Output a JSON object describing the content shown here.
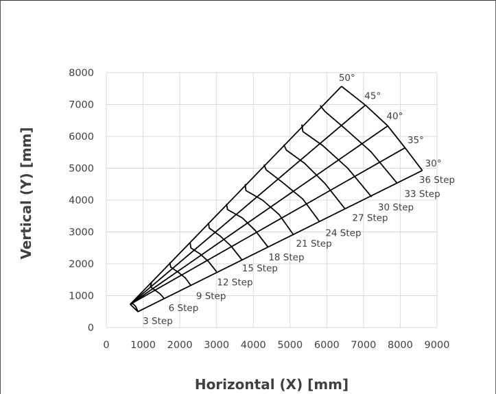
{
  "chart_data": {
    "type": "line",
    "title": "",
    "xlabel": "Horizontal (X) [mm]",
    "ylabel": "Vertical (Y) [mm]",
    "xlim": [
      0,
      9000
    ],
    "ylim": [
      0,
      8000
    ],
    "x_ticks": [
      "0",
      "1000",
      "2000",
      "3000",
      "4000",
      "5000",
      "6000",
      "7000",
      "8000",
      "9000"
    ],
    "y_ticks": [
      "0",
      "1000",
      "2000",
      "3000",
      "4000",
      "5000",
      "6000",
      "7000",
      "8000"
    ],
    "grid": "horizontal and vertical gridlines",
    "line_color": "#000000",
    "grid_color": "#d9d9d9",
    "radial_lines": [
      {
        "label": "30°",
        "points": [
          {
            "x": 650,
            "y": 730
          },
          {
            "x": 860,
            "y": 500
          },
          {
            "x": 8600,
            "y": 4930
          }
        ]
      },
      {
        "label": "35°",
        "points": [
          {
            "x": 650,
            "y": 730
          },
          {
            "x": 8130,
            "y": 5640
          }
        ]
      },
      {
        "label": "40°",
        "points": [
          {
            "x": 650,
            "y": 730
          },
          {
            "x": 7660,
            "y": 6330
          }
        ]
      },
      {
        "label": "45°",
        "points": [
          {
            "x": 650,
            "y": 730
          },
          {
            "x": 7050,
            "y": 6980
          }
        ]
      },
      {
        "label": "50°",
        "points": [
          {
            "x": 650,
            "y": 730
          },
          {
            "x": 6400,
            "y": 7570
          }
        ]
      }
    ],
    "step_arcs": [
      {
        "label": "3 Step",
        "points": [
          {
            "x": 860,
            "y": 500
          },
          {
            "x": 830,
            "y": 580
          },
          {
            "x": 800,
            "y": 660
          },
          {
            "x": 720,
            "y": 750
          },
          {
            "x": 650,
            "y": 730
          }
        ]
      },
      {
        "label": "6 Step",
        "points": [
          {
            "x": 1580,
            "y": 900
          },
          {
            "x": 1470,
            "y": 1050
          },
          {
            "x": 1330,
            "y": 1170
          },
          {
            "x": 1200,
            "y": 1280
          },
          {
            "x": 1230,
            "y": 1400
          }
        ]
      },
      {
        "label": "9 Step",
        "points": [
          {
            "x": 2300,
            "y": 1320
          },
          {
            "x": 2150,
            "y": 1560
          },
          {
            "x": 1950,
            "y": 1740
          },
          {
            "x": 1750,
            "y": 1900
          },
          {
            "x": 1730,
            "y": 2050
          }
        ]
      },
      {
        "label": "12 Step",
        "points": [
          {
            "x": 3000,
            "y": 1750
          },
          {
            "x": 2780,
            "y": 2070
          },
          {
            "x": 2550,
            "y": 2310
          },
          {
            "x": 2300,
            "y": 2500
          },
          {
            "x": 2280,
            "y": 2660
          }
        ]
      },
      {
        "label": "15 Step",
        "points": [
          {
            "x": 3700,
            "y": 2110
          },
          {
            "x": 3400,
            "y": 2550
          },
          {
            "x": 3100,
            "y": 2870
          },
          {
            "x": 2800,
            "y": 3120
          },
          {
            "x": 2780,
            "y": 3290
          }
        ]
      },
      {
        "label": "18 Step",
        "points": [
          {
            "x": 4400,
            "y": 2530
          },
          {
            "x": 4050,
            "y": 3050
          },
          {
            "x": 3700,
            "y": 3440
          },
          {
            "x": 3300,
            "y": 3700
          },
          {
            "x": 3270,
            "y": 3880
          }
        ]
      },
      {
        "label": "21 Step",
        "points": [
          {
            "x": 5100,
            "y": 2900
          },
          {
            "x": 4700,
            "y": 3550
          },
          {
            "x": 4250,
            "y": 4000
          },
          {
            "x": 3800,
            "y": 4300
          },
          {
            "x": 3780,
            "y": 4500
          }
        ]
      },
      {
        "label": "24 Step",
        "points": [
          {
            "x": 5800,
            "y": 3330
          },
          {
            "x": 5350,
            "y": 4030
          },
          {
            "x": 4800,
            "y": 4550
          },
          {
            "x": 4350,
            "y": 4950
          },
          {
            "x": 4290,
            "y": 5110
          }
        ]
      },
      {
        "label": "27 Step",
        "points": [
          {
            "x": 6500,
            "y": 3720
          },
          {
            "x": 5950,
            "y": 4520
          },
          {
            "x": 5400,
            "y": 5150
          },
          {
            "x": 4900,
            "y": 5570
          },
          {
            "x": 4830,
            "y": 5740
          }
        ]
      },
      {
        "label": "30 Step",
        "points": [
          {
            "x": 7220,
            "y": 4100
          },
          {
            "x": 6570,
            "y": 5000
          },
          {
            "x": 5900,
            "y": 5700
          },
          {
            "x": 5350,
            "y": 6150
          },
          {
            "x": 5320,
            "y": 6370
          }
        ]
      },
      {
        "label": "33 Step",
        "points": [
          {
            "x": 7920,
            "y": 4520
          },
          {
            "x": 7200,
            "y": 5520
          },
          {
            "x": 6500,
            "y": 6240
          },
          {
            "x": 5950,
            "y": 6780
          },
          {
            "x": 5820,
            "y": 6970
          }
        ]
      },
      {
        "label": "36 Step",
        "points": [
          {
            "x": 8600,
            "y": 4930
          },
          {
            "x": 8130,
            "y": 5640
          },
          {
            "x": 7660,
            "y": 6330
          },
          {
            "x": 7050,
            "y": 6980
          },
          {
            "x": 6400,
            "y": 7570
          }
        ]
      }
    ],
    "annotations": [
      {
        "text": "50°",
        "x": 6550,
        "y": 7850
      },
      {
        "text": "45°",
        "x": 7250,
        "y": 7280
      },
      {
        "text": "40°",
        "x": 7850,
        "y": 6650
      },
      {
        "text": "35°",
        "x": 8420,
        "y": 5890
      },
      {
        "text": "30°",
        "x": 8900,
        "y": 5160
      },
      {
        "text": "36 Step",
        "x": 9000,
        "y": 4650
      },
      {
        "text": "33 Step",
        "x": 8600,
        "y": 4200
      },
      {
        "text": "30 Step",
        "x": 7880,
        "y": 3790
      },
      {
        "text": "27 Step",
        "x": 7180,
        "y": 3450
      },
      {
        "text": "24 Step",
        "x": 6450,
        "y": 2980
      },
      {
        "text": "21 Step",
        "x": 5650,
        "y": 2650
      },
      {
        "text": "18 Step",
        "x": 4900,
        "y": 2220
      },
      {
        "text": "15 Step",
        "x": 4180,
        "y": 1870
      },
      {
        "text": "12 Step",
        "x": 3500,
        "y": 1430
      },
      {
        "text": "9 Step",
        "x": 2850,
        "y": 1000
      },
      {
        "text": "6 Step",
        "x": 2100,
        "y": 620
      },
      {
        "text": "3 Step",
        "x": 1400,
        "y": 220
      }
    ]
  }
}
